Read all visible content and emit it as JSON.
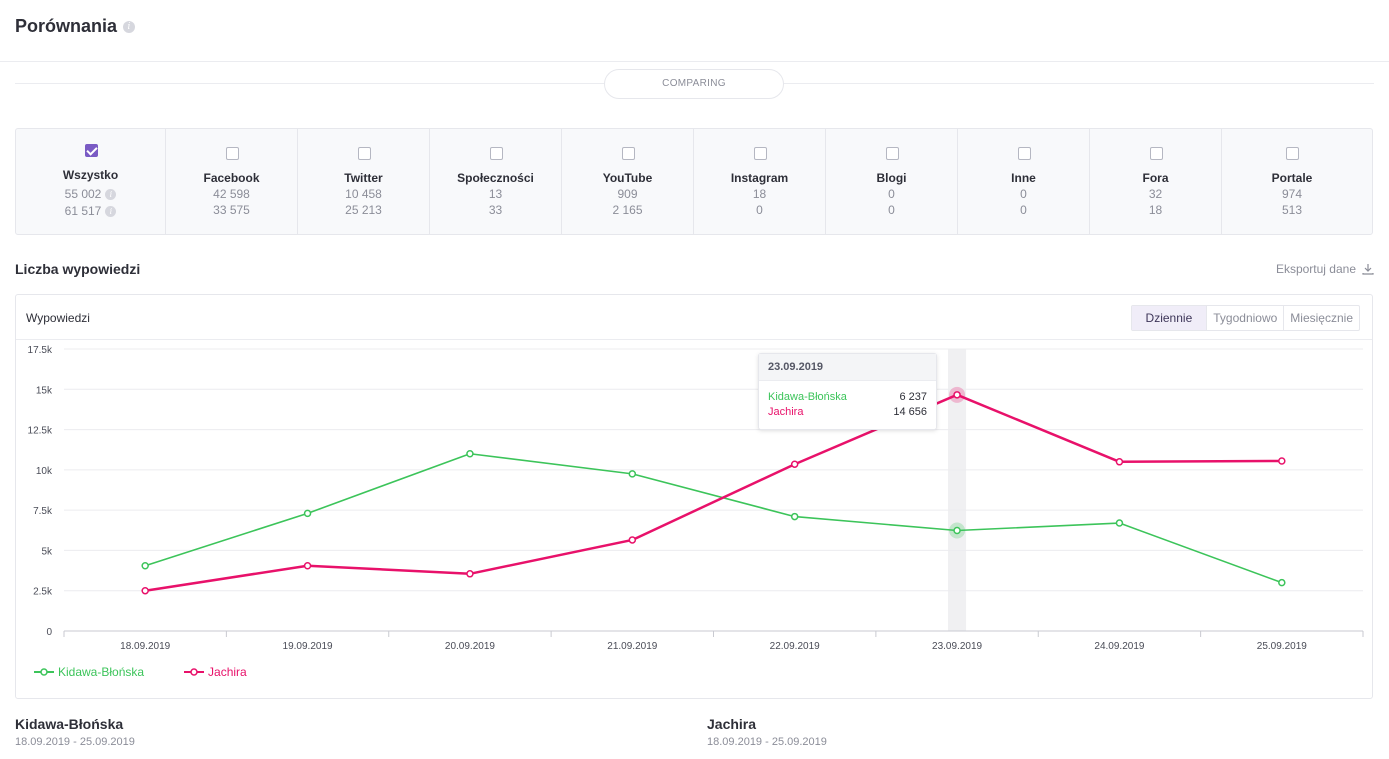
{
  "page": {
    "title": "Porównania",
    "comparing_label": "COMPARING",
    "info_icon": "info-icon"
  },
  "sources": [
    {
      "name": "Wszystko",
      "value_a": "55 002",
      "value_b": "61 517",
      "checked": true
    },
    {
      "name": "Facebook",
      "value_a": "42 598",
      "value_b": "33 575",
      "checked": false
    },
    {
      "name": "Twitter",
      "value_a": "10 458",
      "value_b": "25 213",
      "checked": false
    },
    {
      "name": "Społeczności",
      "value_a": "13",
      "value_b": "33",
      "checked": false
    },
    {
      "name": "YouTube",
      "value_a": "909",
      "value_b": "2 165",
      "checked": false
    },
    {
      "name": "Instagram",
      "value_a": "18",
      "value_b": "0",
      "checked": false
    },
    {
      "name": "Blogi",
      "value_a": "0",
      "value_b": "0",
      "checked": false
    },
    {
      "name": "Inne",
      "value_a": "0",
      "value_b": "0",
      "checked": false
    },
    {
      "name": "Fora",
      "value_a": "32",
      "value_b": "18",
      "checked": false
    },
    {
      "name": "Portale",
      "value_a": "974",
      "value_b": "513",
      "checked": false
    }
  ],
  "section": {
    "title": "Liczba wypowiedzi",
    "export_label": "Eksportuj dane",
    "export_icon": "download-icon"
  },
  "chart_card": {
    "label": "Wypowiedzi",
    "tabs": [
      {
        "label": "Dziennie",
        "active": true
      },
      {
        "label": "Tygodniowo",
        "active": false
      },
      {
        "label": "Miesięcznie",
        "active": false
      }
    ]
  },
  "tooltip": {
    "date": "23.09.2019",
    "rows": [
      {
        "name": "Kidawa-Błońska",
        "value": "6 237",
        "color": "#3cc45a"
      },
      {
        "name": "Jachira",
        "value": "14 656",
        "color": "#e8116a"
      }
    ]
  },
  "chart_data": {
    "type": "line",
    "x": [
      "18.09.2019",
      "19.09.2019",
      "20.09.2019",
      "21.09.2019",
      "22.09.2019",
      "23.09.2019",
      "24.09.2019",
      "25.09.2019"
    ],
    "ylim": [
      0,
      17500
    ],
    "yticks": [
      0,
      2500,
      5000,
      7500,
      10000,
      12500,
      15000,
      17500
    ],
    "ytick_labels": [
      "0",
      "2.5k",
      "5k",
      "7.5k",
      "10k",
      "12.5k",
      "15k",
      "17.5k"
    ],
    "highlight_index": 5,
    "legend": "bottom-left",
    "grid": true,
    "series": [
      {
        "name": "Kidawa-Błońska",
        "color": "#3cc45a",
        "values": [
          4050,
          7300,
          11000,
          9750,
          7100,
          6237,
          6700,
          3000
        ]
      },
      {
        "name": "Jachira",
        "color": "#e8116a",
        "values": [
          2500,
          4050,
          3550,
          5650,
          10350,
          14656,
          10500,
          10550
        ]
      }
    ]
  },
  "summaries": [
    {
      "name": "Kidawa-Błońska",
      "range": "18.09.2019 - 25.09.2019"
    },
    {
      "name": "Jachira",
      "range": "18.09.2019 - 25.09.2019"
    }
  ]
}
